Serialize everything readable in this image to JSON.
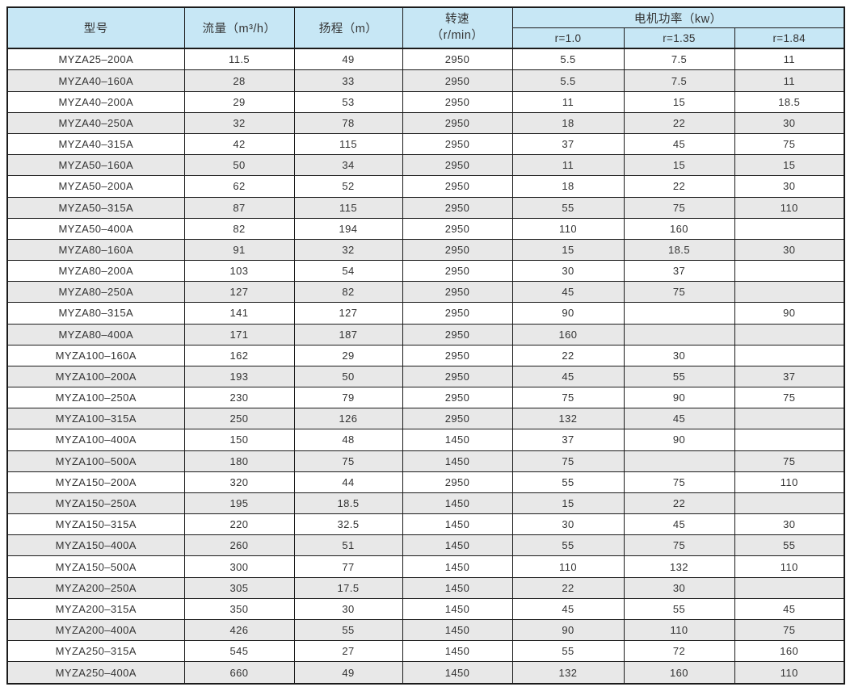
{
  "page": {
    "background_color": "#ffffff",
    "border_color": "#1b1b1b",
    "header_bg_color": "#c7e7f5",
    "stripe_bg_color": "#e8e8e8",
    "text_color": "#333333"
  },
  "table": {
    "headers": {
      "model": "型号",
      "flow": "流量（m³/h）",
      "head": "扬程（m）",
      "speed_line1": "转速",
      "speed_line2": "（r/min）",
      "motor_power": "电机功率（kw）",
      "r1": "r=1.0",
      "r2": "r=1.35",
      "r3": "r=1.84"
    },
    "rows": [
      [
        "MYZA25–200A",
        "11.5",
        "49",
        "2950",
        "5.5",
        "7.5",
        "11"
      ],
      [
        "MYZA40–160A",
        "28",
        "33",
        "2950",
        "5.5",
        "7.5",
        "11"
      ],
      [
        "MYZA40–200A",
        "29",
        "53",
        "2950",
        "11",
        "15",
        "18.5"
      ],
      [
        "MYZA40–250A",
        "32",
        "78",
        "2950",
        "18",
        "22",
        "30"
      ],
      [
        "MYZA40–315A",
        "42",
        "115",
        "2950",
        "37",
        "45",
        "75"
      ],
      [
        "MYZA50–160A",
        "50",
        "34",
        "2950",
        "11",
        "15",
        "15"
      ],
      [
        "MYZA50–200A",
        "62",
        "52",
        "2950",
        "18",
        "22",
        "30"
      ],
      [
        "MYZA50–315A",
        "87",
        "115",
        "2950",
        "55",
        "75",
        "110"
      ],
      [
        "MYZA50–400A",
        "82",
        "194",
        "2950",
        "110",
        "160",
        ""
      ],
      [
        "MYZA80–160A",
        "91",
        "32",
        "2950",
        "15",
        "18.5",
        "30"
      ],
      [
        "MYZA80–200A",
        "103",
        "54",
        "2950",
        "30",
        "37",
        ""
      ],
      [
        "MYZA80–250A",
        "127",
        "82",
        "2950",
        "45",
        "75",
        ""
      ],
      [
        "MYZA80–315A",
        "141",
        "127",
        "2950",
        "90",
        "",
        "90"
      ],
      [
        "MYZA80–400A",
        "171",
        "187",
        "2950",
        "160",
        "",
        ""
      ],
      [
        "MYZA100–160A",
        "162",
        "29",
        "2950",
        "22",
        "30",
        ""
      ],
      [
        "MYZA100–200A",
        "193",
        "50",
        "2950",
        "45",
        "55",
        "37"
      ],
      [
        "MYZA100–250A",
        "230",
        "79",
        "2950",
        "75",
        "90",
        "75"
      ],
      [
        "MYZA100–315A",
        "250",
        "126",
        "2950",
        "132",
        "45",
        ""
      ],
      [
        "MYZA100–400A",
        "150",
        "48",
        "1450",
        "37",
        "90",
        ""
      ],
      [
        "MYZA100–500A",
        "180",
        "75",
        "1450",
        "75",
        "",
        "75"
      ],
      [
        "MYZA150–200A",
        "320",
        "44",
        "2950",
        "55",
        "75",
        "110"
      ],
      [
        "MYZA150–250A",
        "195",
        "18.5",
        "1450",
        "15",
        "22",
        ""
      ],
      [
        "MYZA150–315A",
        "220",
        "32.5",
        "1450",
        "30",
        "45",
        "30"
      ],
      [
        "MYZA150–400A",
        "260",
        "51",
        "1450",
        "55",
        "75",
        "55"
      ],
      [
        "MYZA150–500A",
        "300",
        "77",
        "1450",
        "110",
        "132",
        "110"
      ],
      [
        "MYZA200–250A",
        "305",
        "17.5",
        "1450",
        "22",
        "30",
        ""
      ],
      [
        "MYZA200–315A",
        "350",
        "30",
        "1450",
        "45",
        "55",
        "45"
      ],
      [
        "MYZA200–400A",
        "426",
        "55",
        "1450",
        "90",
        "110",
        "75"
      ],
      [
        "MYZA250–315A",
        "545",
        "27",
        "1450",
        "55",
        "72",
        "160"
      ],
      [
        "MYZA250–400A",
        "660",
        "49",
        "1450",
        "132",
        "160",
        "110"
      ]
    ]
  }
}
